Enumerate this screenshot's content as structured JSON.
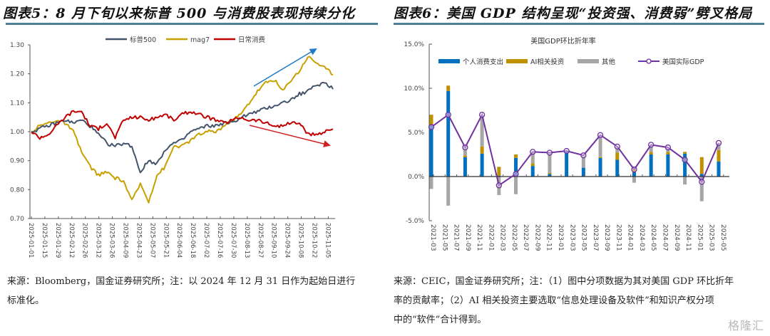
{
  "left_panel": {
    "title": "图表5：8 月下旬以来标普 500 与消费股表现持续分化",
    "source": "来源：Bloomberg，国金证券研究所；注：以 2024 年 12 月 31 日作为起始日进行标准化。",
    "source_line1": "来源：Bloomberg，国金证券研究所；注：以 2024 年 12 月 31 日作为起始日进行",
    "source_line2": "标准化。"
  },
  "right_panel": {
    "title": "图表6：美国 GDP 结构呈现“投资强、消费弱”劈叉格局",
    "source_line1": "来源：CEIC，国金证券研究所；注：（1）图中分项数据为其对美国 GDP 环比折年",
    "source_line2": "率的贡献率；（2）AI 相关投资主要选取“信息处理设备及软件”和知识产权分项",
    "source_line3": "中的“软件”合计得到。"
  },
  "watermark": "格隆汇",
  "chart_data": [
    {
      "type": "line",
      "title": "",
      "xlabel": "",
      "ylabel": "",
      "ylim": [
        0.7,
        1.3
      ],
      "yticks": [
        "1.30",
        "1.20",
        "1.10",
        "1.00",
        "0.90",
        "0.80",
        "0.70"
      ],
      "ytick_values": [
        1.3,
        1.2,
        1.1,
        1.0,
        0.9,
        0.8,
        0.7
      ],
      "xticks": [
        "2025-01-01",
        "2025-01-15",
        "2025-01-29",
        "2025-02-12",
        "2025-02-26",
        "2025-03-12",
        "2025-03-26",
        "2025-04-09",
        "2025-04-23",
        "2025-05-07",
        "2025-05-21",
        "2025-06-04",
        "2025-06-18",
        "2025-07-02",
        "2025-07-16",
        "2025-07-30",
        "2025-08-13",
        "2025-08-27",
        "2025-09-10",
        "2025-09-24",
        "2025-10-08",
        "2025-10-22",
        "2025-11-05"
      ],
      "legend_position": "top",
      "annotations": [
        "up-arrow-blue",
        "down-arrow-red"
      ],
      "colors": {
        "sp500": "#44546a",
        "mag7": "#c8a000",
        "staples": "#c00000",
        "arrow_up": "#1f7ac8",
        "arrow_down": "#d02020"
      },
      "series": [
        {
          "name": "标普500",
          "key": "sp500",
          "values": [
            1.0,
            1.01,
            1.02,
            1.03,
            1.04,
            1.03,
            1.04,
            1.02,
            0.99,
            0.96,
            0.95,
            0.96,
            0.95,
            0.86,
            0.9,
            0.89,
            0.94,
            0.96,
            0.97,
            1.0,
            1.01,
            1.02,
            1.02,
            1.03,
            1.03,
            1.05,
            1.06,
            1.07,
            1.08,
            1.09,
            1.1,
            1.11,
            1.13,
            1.14,
            1.16,
            1.17,
            1.15
          ]
        },
        {
          "name": "mag7",
          "key": "mag7",
          "values": [
            1.0,
            1.02,
            1.03,
            1.04,
            1.03,
            1.0,
            0.93,
            0.88,
            0.85,
            0.86,
            0.84,
            0.83,
            0.76,
            0.82,
            0.76,
            0.85,
            0.88,
            0.95,
            0.95,
            0.97,
            0.99,
            1.0,
            1.0,
            1.02,
            1.04,
            1.06,
            1.1,
            1.14,
            1.17,
            1.18,
            1.14,
            1.18,
            1.21,
            1.26,
            1.24,
            1.22,
            1.2
          ]
        },
        {
          "name": "日常消费",
          "key": "staples",
          "values": [
            1.0,
            0.98,
            0.99,
            1.02,
            1.05,
            1.07,
            1.07,
            1.02,
            1.01,
            1.03,
            0.98,
            1.04,
            1.05,
            1.05,
            1.04,
            1.05,
            1.06,
            1.04,
            1.06,
            1.07,
            1.06,
            1.05,
            1.04,
            1.03,
            1.04,
            1.05,
            1.04,
            1.04,
            1.03,
            1.02,
            1.02,
            1.03,
            1.03,
            0.99,
            0.99,
            1.0,
            1.01
          ]
        }
      ]
    },
    {
      "type": "bar",
      "stacked": true,
      "title": "美国GDP环比折年率",
      "xlabel": "",
      "ylabel": "",
      "ylim": [
        -5,
        15
      ],
      "yticks": [
        "15.0%",
        "10.0%",
        "5.0%",
        "0.0%",
        "-5.0%"
      ],
      "ytick_values": [
        15,
        10,
        5,
        0,
        -5
      ],
      "xticks": [
        "2021-03",
        "2021-05",
        "2021-07",
        "2021-09",
        "2021-11",
        "2022-01",
        "2022-03",
        "2022-05",
        "2022-07",
        "2022-09",
        "2022-11",
        "2023-01",
        "2023-03",
        "2023-05",
        "2023-07",
        "2023-09",
        "2023-11",
        "2024-01",
        "2024-03",
        "2024-05",
        "2024-07",
        "2024-09",
        "2024-11",
        "2025-01",
        "2025-03",
        "2025-05"
      ],
      "categories": [
        "2021Q1",
        "2021Q2",
        "2021Q3",
        "2021Q4",
        "2022Q1",
        "2022Q2",
        "2022Q3",
        "2022Q4",
        "2023Q1",
        "2023Q2",
        "2023Q3",
        "2023Q4",
        "2024Q1",
        "2024Q2",
        "2024Q3",
        "2024Q4",
        "2025Q1",
        "2025Q2"
      ],
      "legend_position": "top",
      "colors": {
        "consumption": "#0070c0",
        "ai": "#c09000",
        "other": "#a6a6a6",
        "gdp": "#7030a0"
      },
      "series": [
        {
          "name": "个人消费支出",
          "key": "consumption",
          "values": [
            5.8,
            9.7,
            2.2,
            2.6,
            0.1,
            2.1,
            1.2,
            0.3,
            2.9,
            1.0,
            2.1,
            1.9,
            0.5,
            2.5,
            2.5,
            2.6,
            0.3,
            1.7
          ]
        },
        {
          "name": "AI相关投资",
          "key": "ai",
          "values": [
            1.2,
            0.6,
            0.2,
            0.8,
            1.0,
            0.4,
            0.3,
            0.1,
            0.0,
            0.0,
            0.1,
            0.8,
            0.6,
            0.3,
            0.3,
            0.2,
            1.9,
            1.3
          ]
        },
        {
          "name": "其他",
          "key": "other",
          "values": [
            -1.4,
            -3.3,
            1.0,
            3.6,
            -2.1,
            -2.0,
            1.3,
            2.3,
            0.0,
            1.4,
            2.5,
            0.7,
            -0.7,
            0.8,
            0.5,
            -0.9,
            -2.8,
            0.8
          ]
        },
        {
          "name": "美国实际GDP",
          "key": "gdp",
          "type": "line",
          "marker": "circle",
          "values": [
            5.6,
            7.0,
            3.3,
            7.0,
            -1.0,
            0.3,
            2.8,
            2.7,
            2.9,
            2.4,
            4.7,
            3.4,
            0.8,
            3.6,
            3.3,
            1.9,
            -0.6,
            3.8
          ]
        }
      ]
    }
  ]
}
